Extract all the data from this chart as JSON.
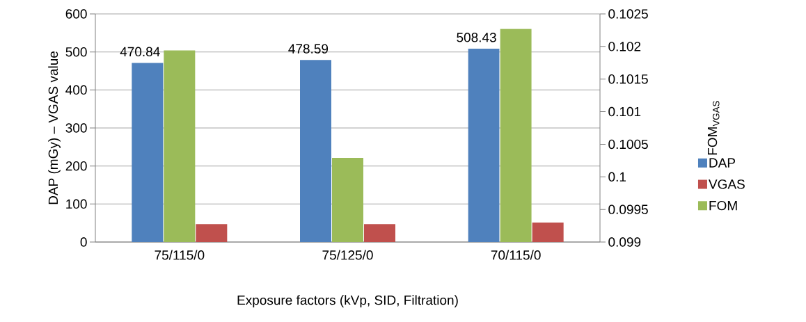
{
  "chart_data": {
    "type": "bar",
    "xlabel": "Exposure factors (kVp, SID, Filtration)",
    "ylabel": "DAP (mGy) – VGAS value",
    "y2label": "FOM$_{VGAS}$",
    "categories": [
      "75/115/0",
      "75/125/0",
      "70/115/0"
    ],
    "series": [
      {
        "name": "DAP",
        "color": "#4f81bd",
        "values": [
          470.84,
          478.59,
          508.43
        ],
        "value_labels": [
          "470.84",
          "478.59",
          "508.43"
        ]
      },
      {
        "name": "FOM",
        "color": "#9bbb59",
        "axis": "y2",
        "values": [
          0.10194,
          0.10029,
          0.10227
        ]
      },
      {
        "name": "VGAS",
        "color": "#c0504d",
        "values": [
          47,
          47,
          51
        ]
      }
    ],
    "ylim": [
      0,
      600
    ],
    "yticks": [
      0,
      100,
      200,
      300,
      400,
      500,
      600
    ],
    "y2lim": [
      0.099,
      0.1025
    ],
    "y2ticks": [
      0.099,
      0.0995,
      0.1,
      0.1005,
      0.101,
      0.1015,
      0.102,
      0.1025
    ],
    "grid": "y",
    "legend": "right"
  }
}
